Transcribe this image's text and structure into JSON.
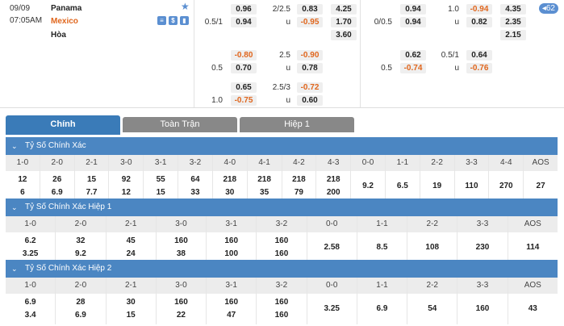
{
  "match": {
    "date": "09/09",
    "time": "07:05AM",
    "home": "Panama",
    "away": "Mexico",
    "draw": "Hòa",
    "more_count": "62"
  },
  "odds": {
    "ft": {
      "r1": {
        "h1": "0.96",
        "line": "2/2.5",
        "h2": "0.83",
        "x": "4.25"
      },
      "r2": {
        "hcp": "0.5/1",
        "h1": "0.94",
        "line": "u",
        "h2": "-0.95",
        "x": "1.70"
      },
      "r3": {
        "x": "3.60"
      },
      "r4": {
        "h1": "-0.80",
        "line": "2.5",
        "h2": "-0.90"
      },
      "r5": {
        "hcp": "0.5",
        "h1": "0.70",
        "line": "u",
        "h2": "0.78"
      },
      "r6": {
        "h1": "0.65",
        "line": "2.5/3",
        "h2": "-0.72"
      },
      "r7": {
        "hcp": "1.0",
        "h1": "-0.75",
        "line": "u",
        "h2": "0.60"
      }
    },
    "h1": {
      "r1": {
        "h1": "0.94",
        "line": "1.0",
        "h2": "-0.94",
        "x": "4.35"
      },
      "r2": {
        "hcp": "0/0.5",
        "h1": "0.94",
        "line": "u",
        "h2": "0.82",
        "x": "2.35"
      },
      "r3": {
        "x": "2.15"
      },
      "r4": {
        "h1": "0.62",
        "line": "0.5/1",
        "h2": "0.64"
      },
      "r5": {
        "hcp": "0.5",
        "h1": "-0.74",
        "line": "u",
        "h2": "-0.76"
      }
    }
  },
  "tabs": [
    "Chính",
    "Toàn Trận",
    "Hiệp 1"
  ],
  "sections": [
    {
      "title": "Tỷ Số Chính Xác",
      "cols": [
        {
          "h": "1-0",
          "v": [
            "12",
            "6"
          ]
        },
        {
          "h": "2-0",
          "v": [
            "26",
            "6.9"
          ]
        },
        {
          "h": "2-1",
          "v": [
            "15",
            "7.7"
          ]
        },
        {
          "h": "3-0",
          "v": [
            "92",
            "12"
          ]
        },
        {
          "h": "3-1",
          "v": [
            "55",
            "15"
          ]
        },
        {
          "h": "3-2",
          "v": [
            "64",
            "33"
          ]
        },
        {
          "h": "4-0",
          "v": [
            "218",
            "30"
          ]
        },
        {
          "h": "4-1",
          "v": [
            "218",
            "35"
          ]
        },
        {
          "h": "4-2",
          "v": [
            "218",
            "79"
          ]
        },
        {
          "h": "4-3",
          "v": [
            "218",
            "200"
          ]
        },
        {
          "h": "0-0",
          "v": [
            "9.2"
          ]
        },
        {
          "h": "1-1",
          "v": [
            "6.5"
          ]
        },
        {
          "h": "2-2",
          "v": [
            "19"
          ]
        },
        {
          "h": "3-3",
          "v": [
            "110"
          ]
        },
        {
          "h": "4-4",
          "v": [
            "270"
          ]
        },
        {
          "h": "AOS",
          "v": [
            "27"
          ]
        }
      ]
    },
    {
      "title": "Tỷ Số Chính Xác Hiệp 1",
      "cols": [
        {
          "h": "1-0",
          "v": [
            "6.2",
            "3.25"
          ]
        },
        {
          "h": "2-0",
          "v": [
            "32",
            "9.2"
          ]
        },
        {
          "h": "2-1",
          "v": [
            "45",
            "24"
          ]
        },
        {
          "h": "3-0",
          "v": [
            "160",
            "38"
          ]
        },
        {
          "h": "3-1",
          "v": [
            "160",
            "100"
          ]
        },
        {
          "h": "3-2",
          "v": [
            "160",
            "160"
          ]
        },
        {
          "h": "0-0",
          "v": [
            "2.58"
          ]
        },
        {
          "h": "1-1",
          "v": [
            "8.5"
          ]
        },
        {
          "h": "2-2",
          "v": [
            "108"
          ]
        },
        {
          "h": "3-3",
          "v": [
            "230"
          ]
        },
        {
          "h": "AOS",
          "v": [
            "114"
          ]
        }
      ]
    },
    {
      "title": "Tỷ Số Chính Xác Hiệp 2",
      "cols": [
        {
          "h": "1-0",
          "v": [
            "6.9",
            "3.4"
          ]
        },
        {
          "h": "2-0",
          "v": [
            "28",
            "6.9"
          ]
        },
        {
          "h": "2-1",
          "v": [
            "30",
            "15"
          ]
        },
        {
          "h": "3-0",
          "v": [
            "160",
            "22"
          ]
        },
        {
          "h": "3-1",
          "v": [
            "160",
            "47"
          ]
        },
        {
          "h": "3-2",
          "v": [
            "160",
            "160"
          ]
        },
        {
          "h": "0-0",
          "v": [
            "3.25"
          ]
        },
        {
          "h": "1-1",
          "v": [
            "6.9"
          ]
        },
        {
          "h": "2-2",
          "v": [
            "54"
          ]
        },
        {
          "h": "3-3",
          "v": [
            "160"
          ]
        },
        {
          "h": "AOS",
          "v": [
            "43"
          ]
        }
      ]
    }
  ]
}
